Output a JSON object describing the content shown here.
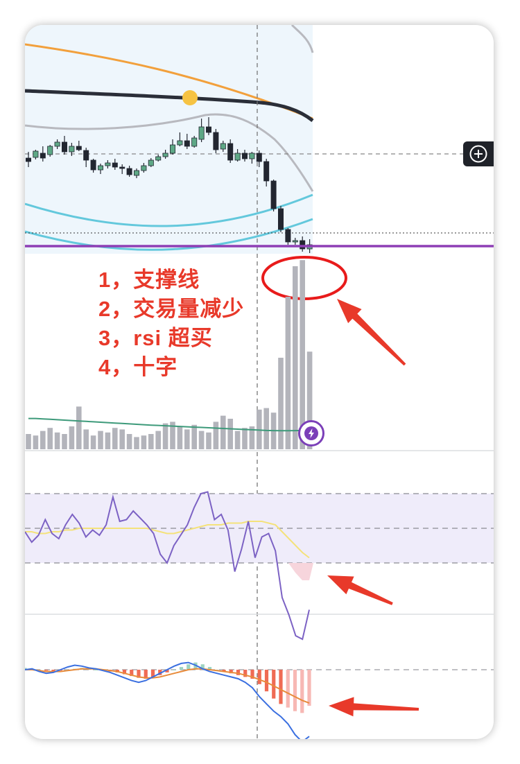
{
  "annotations": [
    "1，支撑线",
    "2，交易量减少",
    "3，rsi 超买",
    "4，十字"
  ],
  "icons": {
    "zoom": "plus-circle-icon",
    "event": "lightning-bolt-icon"
  },
  "colors": {
    "candle_up": "#5ea886",
    "candle_down": "#222630",
    "support_line": "#8e3fb5",
    "annotation_text": "#e8392a",
    "volume_bar": "#b3b4bb",
    "rsi_line": "#7c62c4",
    "rsi_signal": "#f4e27a",
    "macd_line": "#3a6fe0",
    "macd_signal": "#e88b3a",
    "macd_hist_negative": "#ef6b54"
  },
  "chart_data": [
    {
      "type": "candlestick",
      "panel": "price",
      "candles": [
        [
          0,
          173,
          168,
          182,
          160
        ],
        [
          1,
          174,
          183,
          185,
          171
        ],
        [
          2,
          180,
          173,
          190,
          168
        ],
        [
          3,
          178,
          190,
          192,
          175
        ],
        [
          4,
          190,
          196,
          200,
          186
        ],
        [
          5,
          196,
          182,
          205,
          178
        ],
        [
          6,
          182,
          190,
          195,
          176
        ],
        [
          7,
          190,
          185,
          198,
          183
        ],
        [
          8,
          184,
          170,
          188,
          160
        ],
        [
          9,
          170,
          156,
          172,
          152
        ],
        [
          10,
          156,
          162,
          165,
          150
        ],
        [
          11,
          162,
          166,
          170,
          158
        ],
        [
          12,
          166,
          160,
          172,
          156
        ],
        [
          13,
          160,
          158,
          164,
          150
        ],
        [
          14,
          158,
          149,
          162,
          146
        ],
        [
          15,
          148,
          155,
          158,
          144
        ],
        [
          16,
          155,
          162,
          166,
          152
        ],
        [
          17,
          162,
          170,
          173,
          160
        ],
        [
          18,
          170,
          175,
          178,
          168
        ],
        [
          19,
          175,
          180,
          185,
          172
        ],
        [
          20,
          180,
          192,
          200,
          178
        ],
        [
          21,
          192,
          198,
          210,
          190
        ],
        [
          22,
          198,
          190,
          208,
          186
        ],
        [
          23,
          190,
          202,
          205,
          188
        ],
        [
          24,
          200,
          218,
          230,
          196
        ],
        [
          25,
          218,
          210,
          232,
          206
        ],
        [
          26,
          210,
          185,
          215,
          180
        ],
        [
          27,
          186,
          194,
          198,
          182
        ],
        [
          28,
          194,
          170,
          200,
          166
        ],
        [
          29,
          170,
          180,
          186,
          168
        ],
        [
          30,
          180,
          172,
          185,
          168
        ],
        [
          31,
          172,
          180,
          182,
          165
        ],
        [
          32,
          180,
          168,
          184,
          160
        ],
        [
          33,
          168,
          140,
          172,
          132
        ],
        [
          34,
          140,
          100,
          142,
          96
        ],
        [
          35,
          100,
          70,
          104,
          66
        ],
        [
          36,
          70,
          52,
          72,
          48
        ],
        [
          37,
          52,
          54,
          58,
          48
        ],
        [
          38,
          54,
          42,
          60,
          38
        ],
        [
          39,
          42,
          48,
          56,
          36
        ]
      ],
      "support_level": 46,
      "current_price_level": 65,
      "ylim": [
        30,
        320
      ]
    },
    {
      "type": "bar",
      "panel": "volume",
      "values": [
        10,
        9,
        12,
        14,
        11,
        10,
        15,
        28,
        13,
        9,
        12,
        11,
        14,
        13,
        10,
        8,
        9,
        10,
        12,
        17,
        18,
        15,
        13,
        16,
        12,
        11,
        18,
        22,
        20,
        12,
        14,
        15,
        26,
        27,
        24,
        60,
        100,
        120,
        124,
        64
      ],
      "moving_average": [
        37,
        37,
        36.5,
        36,
        35.5,
        35,
        34.5,
        34,
        33.5,
        33,
        32.5,
        32,
        31.5,
        31,
        30.5,
        30,
        29.5,
        29,
        28.6,
        28.2,
        27.8,
        27.4,
        27,
        26.6,
        26.2,
        25.8,
        25.4,
        25,
        24.6,
        24.2,
        23.8,
        23.4,
        23,
        22.6,
        22.4,
        22.3,
        22.3,
        22.4,
        22.6,
        23
      ]
    },
    {
      "type": "line",
      "panel": "rsi",
      "series": [
        {
          "values": [
            48,
            42,
            46,
            55,
            47,
            44,
            52,
            58,
            53,
            45,
            49,
            46,
            52,
            68,
            54,
            55,
            60,
            56,
            52,
            47,
            35,
            30,
            40,
            46,
            52,
            62,
            70,
            71,
            55,
            58,
            49,
            25,
            38,
            54,
            33,
            45,
            47,
            37,
            10,
            0,
            -12,
            -14,
            3
          ]
        },
        {
          "values": [
            48,
            48,
            47,
            47,
            48,
            48,
            49,
            49,
            50,
            50,
            50,
            50,
            50,
            50,
            50,
            50,
            50,
            50,
            50,
            49,
            48,
            47,
            47,
            48,
            49,
            50,
            51,
            52,
            52,
            52,
            53,
            53,
            53,
            54,
            54,
            54,
            53,
            52,
            48,
            44,
            40,
            36,
            33
          ]
        }
      ],
      "ylim": [
        -20,
        80
      ],
      "bands": [
        30,
        70
      ]
    },
    {
      "type": "bar",
      "panel": "macd",
      "histogram": [
        2,
        1,
        0,
        -1,
        -2,
        -1,
        0,
        1,
        2,
        1,
        0,
        -1,
        -2,
        -3,
        -5,
        -7,
        -9,
        -10,
        -8,
        -6,
        -3,
        0,
        3,
        6,
        8,
        6,
        3,
        0,
        -2,
        -4,
        -6,
        -8,
        -10,
        -16,
        -24,
        -32,
        -38,
        -42,
        -46,
        -48,
        -40
      ],
      "series": [
        {
          "values": [
            0,
            1,
            -2,
            -4,
            -3,
            0,
            3,
            5,
            4,
            2,
            1,
            -1,
            -3,
            -6,
            -9,
            -12,
            -14,
            -12,
            -8,
            -4,
            0,
            4,
            7,
            8,
            5,
            1,
            -2,
            -4,
            -6,
            -8,
            -10,
            -14,
            -20,
            -30,
            -38,
            -46,
            -52,
            -60,
            -72,
            -80,
            -74
          ]
        },
        {
          "values": [
            0,
            0,
            -1,
            -2,
            -2,
            -2,
            -1,
            0,
            1,
            1,
            1,
            0,
            -1,
            -2,
            -4,
            -6,
            -8,
            -9,
            -9,
            -8,
            -6,
            -4,
            -2,
            0,
            1,
            1,
            0,
            -1,
            -2,
            -3,
            -4,
            -6,
            -8,
            -11,
            -14,
            -18,
            -22,
            -26,
            -30,
            -34,
            -37
          ]
        }
      ],
      "ylim": [
        -90,
        30
      ]
    }
  ]
}
